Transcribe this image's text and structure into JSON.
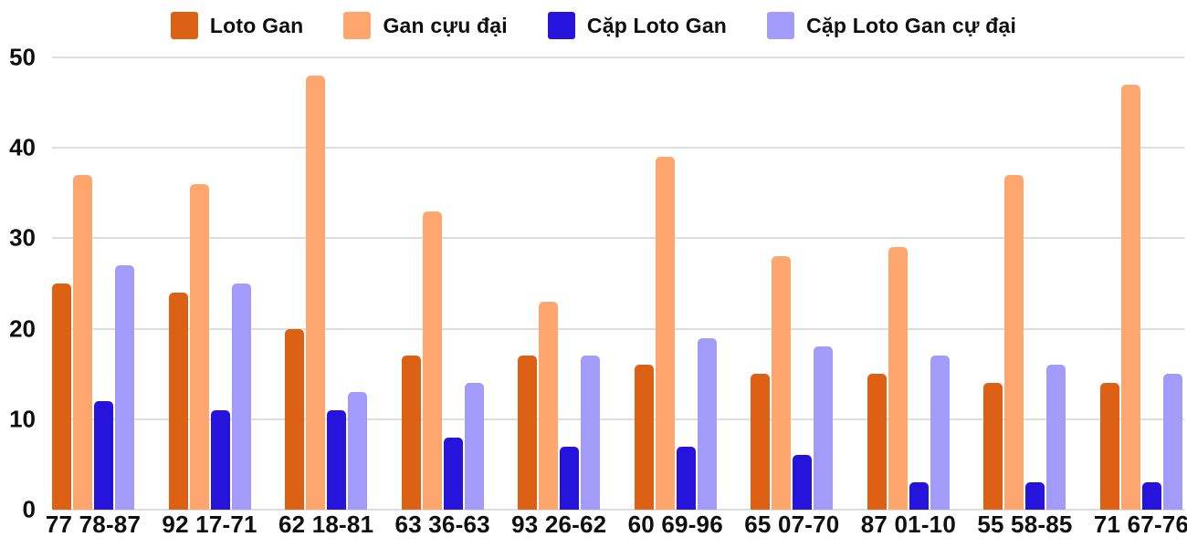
{
  "chart_data": {
    "type": "bar",
    "title": "",
    "xlabel": "",
    "ylabel": "",
    "ylim": [
      0,
      50
    ],
    "yticks": [
      0,
      10,
      20,
      30,
      40,
      50
    ],
    "grid": true,
    "legend_position": "top",
    "categories": [
      "77 78-87",
      "92 17-71",
      "62 18-81",
      "63 36-63",
      "93 26-62",
      "60 69-96",
      "65 07-70",
      "87 01-10",
      "55 58-85",
      "71 67-76"
    ],
    "series": [
      {
        "name": "Loto Gan",
        "color": "#DD6115",
        "values": [
          25,
          24,
          20,
          17,
          17,
          16,
          15,
          15,
          14,
          14
        ]
      },
      {
        "name": "Gan cựu đại",
        "color": "#FFA66E",
        "values": [
          37,
          36,
          48,
          33,
          23,
          39,
          28,
          29,
          37,
          47
        ]
      },
      {
        "name": "Cặp Loto Gan",
        "color": "#2613DC",
        "values": [
          12,
          11,
          11,
          8,
          7,
          7,
          6,
          3,
          3,
          3
        ]
      },
      {
        "name": "Cặp Loto Gan cự đại",
        "color": "#A29BF9",
        "values": [
          27,
          25,
          13,
          14,
          17,
          19,
          18,
          17,
          16,
          15
        ]
      }
    ],
    "colors": {
      "grid": "#DEDEDE",
      "text": "#0F0F0F",
      "background": "#FFFFFF"
    }
  }
}
